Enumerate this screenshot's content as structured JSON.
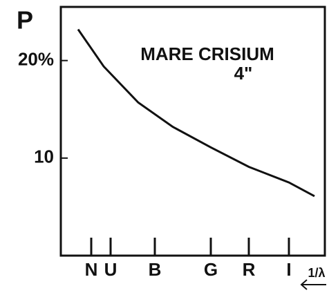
{
  "chart_data": {
    "type": "line",
    "ylabel": "P",
    "xlabel": "1/λ",
    "annotations": [
      "MARE CRISIUM",
      "4\""
    ],
    "x": [
      2.775,
      2.59,
      2.34,
      2.09,
      1.815,
      1.54,
      1.25,
      1.065
    ],
    "values": [
      23.2,
      19.4,
      15.7,
      13.2,
      11.1,
      9.1,
      7.5,
      6.1
    ],
    "color": "#111111",
    "xlim": [
      2.9,
      0.99
    ],
    "ylim": [
      0,
      25.5
    ],
    "xticks": [
      {
        "value": 2.68,
        "label": "N"
      },
      {
        "value": 2.54,
        "label": "U"
      },
      {
        "value": 2.22,
        "label": "B"
      },
      {
        "value": 1.815,
        "label": "G"
      },
      {
        "value": 1.54,
        "label": "R"
      },
      {
        "value": 1.25,
        "label": "I"
      }
    ],
    "yticks": [
      {
        "value": 20,
        "label": "20%"
      },
      {
        "value": 10,
        "label": "10"
      }
    ],
    "grid": false
  }
}
